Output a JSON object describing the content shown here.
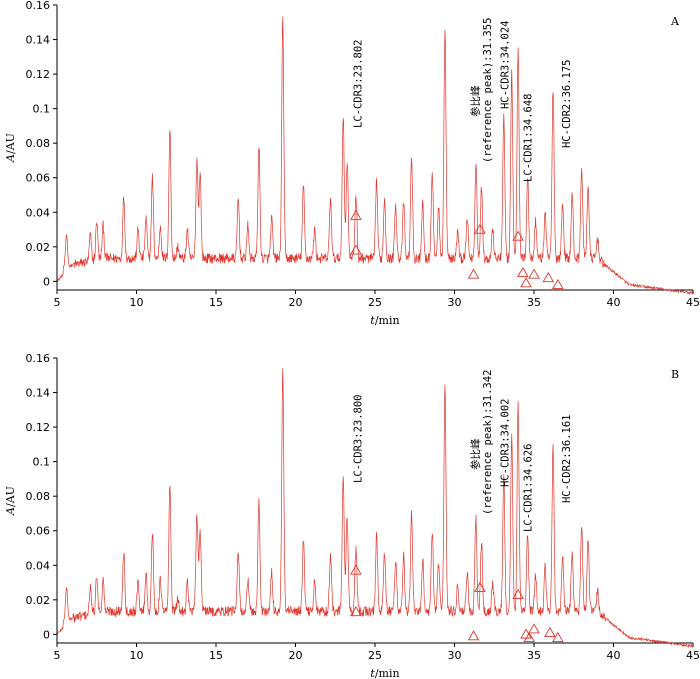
{
  "chart_data": [
    {
      "type": "line",
      "panel": "A",
      "xlabel": "t/min",
      "ylabel": "A/AU",
      "xlim": [
        5,
        45
      ],
      "ylim": [
        -0.005,
        0.16
      ],
      "x_ticks": [
        5,
        10,
        15,
        20,
        25,
        30,
        35,
        40,
        45
      ],
      "x_tick_labels": [
        "5",
        "10",
        "15",
        "20",
        "25",
        "30",
        "35",
        "40",
        "45"
      ],
      "y_ticks": [
        0,
        0.02,
        0.04,
        0.06,
        0.08,
        0.1,
        0.12,
        0.14,
        0.16
      ],
      "y_tick_labels": [
        "0",
        "0.02",
        "0.04",
        "0.06",
        "0.08",
        "0.1",
        "0.12",
        "0.14",
        "0.16"
      ],
      "peaks": [
        {
          "t": 5.6,
          "h": 0.032
        },
        {
          "t": 7.1,
          "h": 0.028
        },
        {
          "t": 7.5,
          "h": 0.036
        },
        {
          "t": 7.9,
          "h": 0.032
        },
        {
          "t": 9.2,
          "h": 0.049
        },
        {
          "t": 10.1,
          "h": 0.03
        },
        {
          "t": 10.6,
          "h": 0.036
        },
        {
          "t": 11.0,
          "h": 0.06
        },
        {
          "t": 11.5,
          "h": 0.032
        },
        {
          "t": 12.1,
          "h": 0.088
        },
        {
          "t": 12.6,
          "h": 0.02
        },
        {
          "t": 13.2,
          "h": 0.03
        },
        {
          "t": 13.8,
          "h": 0.07
        },
        {
          "t": 14.0,
          "h": 0.062
        },
        {
          "t": 16.4,
          "h": 0.048
        },
        {
          "t": 17.0,
          "h": 0.032
        },
        {
          "t": 17.7,
          "h": 0.078
        },
        {
          "t": 18.5,
          "h": 0.036
        },
        {
          "t": 19.2,
          "h": 0.152
        },
        {
          "t": 20.5,
          "h": 0.055
        },
        {
          "t": 21.2,
          "h": 0.03
        },
        {
          "t": 22.2,
          "h": 0.048
        },
        {
          "t": 23.0,
          "h": 0.095
        },
        {
          "t": 23.25,
          "h": 0.07
        },
        {
          "t": 23.8,
          "h": 0.05
        },
        {
          "t": 25.1,
          "h": 0.058
        },
        {
          "t": 25.6,
          "h": 0.048
        },
        {
          "t": 26.3,
          "h": 0.045
        },
        {
          "t": 26.8,
          "h": 0.046
        },
        {
          "t": 27.3,
          "h": 0.072
        },
        {
          "t": 28.0,
          "h": 0.044
        },
        {
          "t": 28.6,
          "h": 0.062
        },
        {
          "t": 29.0,
          "h": 0.042
        },
        {
          "t": 29.4,
          "h": 0.146
        },
        {
          "t": 30.2,
          "h": 0.028
        },
        {
          "t": 30.8,
          "h": 0.036
        },
        {
          "t": 31.35,
          "h": 0.068
        },
        {
          "t": 31.7,
          "h": 0.055
        },
        {
          "t": 32.4,
          "h": 0.03
        },
        {
          "t": 33.1,
          "h": 0.095
        },
        {
          "t": 33.6,
          "h": 0.12
        },
        {
          "t": 34.0,
          "h": 0.135
        },
        {
          "t": 34.6,
          "h": 0.06
        },
        {
          "t": 35.1,
          "h": 0.035
        },
        {
          "t": 35.7,
          "h": 0.04
        },
        {
          "t": 36.2,
          "h": 0.112
        },
        {
          "t": 36.8,
          "h": 0.045
        },
        {
          "t": 37.4,
          "h": 0.05
        },
        {
          "t": 38.0,
          "h": 0.065
        },
        {
          "t": 38.4,
          "h": 0.055
        },
        {
          "t": 39.0,
          "h": 0.025
        }
      ],
      "markers": [
        {
          "t": 23.8,
          "y": 0.038
        },
        {
          "t": 23.8,
          "y": 0.018
        },
        {
          "t": 31.2,
          "y": 0.004
        },
        {
          "t": 31.6,
          "y": 0.03
        },
        {
          "t": 34.0,
          "y": 0.026
        },
        {
          "t": 34.3,
          "y": 0.005
        },
        {
          "t": 34.5,
          "y": -0.001
        },
        {
          "t": 35.0,
          "y": 0.004
        },
        {
          "t": 35.9,
          "y": 0.002
        },
        {
          "t": 36.5,
          "y": -0.002
        }
      ],
      "annotations": [
        {
          "text": "LC-CDR3:23.802",
          "t": 24.15
        },
        {
          "text": "参比峰",
          "t": 31.55
        },
        {
          "text": "(reference peak):31.355",
          "t": 32.3
        },
        {
          "text": "HC-CDR3:34.024",
          "t": 33.4
        },
        {
          "text": "LC-CDR1:34.648",
          "t": 34.85
        },
        {
          "text": "HC-CDR2:36.175",
          "t": 37.25
        }
      ]
    },
    {
      "type": "line",
      "panel": "B",
      "xlabel": "t/min",
      "ylabel": "A/AU",
      "xlim": [
        5,
        45
      ],
      "ylim": [
        -0.005,
        0.16
      ],
      "x_ticks": [
        5,
        10,
        15,
        20,
        25,
        30,
        35,
        40,
        45
      ],
      "x_tick_labels": [
        "5",
        "10",
        "15",
        "20",
        "25",
        "30",
        "35",
        "40",
        "45"
      ],
      "y_ticks": [
        0,
        0.02,
        0.04,
        0.06,
        0.08,
        0.1,
        0.12,
        0.14,
        0.16
      ],
      "y_tick_labels": [
        "0",
        "0.02",
        "0.04",
        "0.06",
        "0.08",
        "0.1",
        "0.12",
        "0.14",
        "0.16"
      ],
      "peaks": [
        {
          "t": 5.6,
          "h": 0.032
        },
        {
          "t": 7.1,
          "h": 0.028
        },
        {
          "t": 7.5,
          "h": 0.035
        },
        {
          "t": 7.9,
          "h": 0.031
        },
        {
          "t": 9.2,
          "h": 0.048
        },
        {
          "t": 10.1,
          "h": 0.03
        },
        {
          "t": 10.6,
          "h": 0.035
        },
        {
          "t": 11.0,
          "h": 0.058
        },
        {
          "t": 11.5,
          "h": 0.031
        },
        {
          "t": 12.1,
          "h": 0.087
        },
        {
          "t": 12.6,
          "h": 0.02
        },
        {
          "t": 13.2,
          "h": 0.03
        },
        {
          "t": 13.8,
          "h": 0.069
        },
        {
          "t": 14.0,
          "h": 0.06
        },
        {
          "t": 16.4,
          "h": 0.047
        },
        {
          "t": 17.0,
          "h": 0.031
        },
        {
          "t": 17.7,
          "h": 0.077
        },
        {
          "t": 18.5,
          "h": 0.035
        },
        {
          "t": 19.2,
          "h": 0.152
        },
        {
          "t": 20.5,
          "h": 0.054
        },
        {
          "t": 21.2,
          "h": 0.03
        },
        {
          "t": 22.2,
          "h": 0.047
        },
        {
          "t": 23.0,
          "h": 0.092
        },
        {
          "t": 23.25,
          "h": 0.068
        },
        {
          "t": 23.8,
          "h": 0.049
        },
        {
          "t": 25.1,
          "h": 0.057
        },
        {
          "t": 25.6,
          "h": 0.047
        },
        {
          "t": 26.3,
          "h": 0.044
        },
        {
          "t": 26.8,
          "h": 0.045
        },
        {
          "t": 27.3,
          "h": 0.07
        },
        {
          "t": 28.0,
          "h": 0.043
        },
        {
          "t": 28.6,
          "h": 0.06
        },
        {
          "t": 29.0,
          "h": 0.041
        },
        {
          "t": 29.4,
          "h": 0.145
        },
        {
          "t": 30.2,
          "h": 0.028
        },
        {
          "t": 30.8,
          "h": 0.035
        },
        {
          "t": 31.34,
          "h": 0.067
        },
        {
          "t": 31.7,
          "h": 0.054
        },
        {
          "t": 32.4,
          "h": 0.03
        },
        {
          "t": 33.1,
          "h": 0.092
        },
        {
          "t": 33.6,
          "h": 0.115
        },
        {
          "t": 34.0,
          "h": 0.132
        },
        {
          "t": 34.6,
          "h": 0.058
        },
        {
          "t": 35.1,
          "h": 0.034
        },
        {
          "t": 35.7,
          "h": 0.039
        },
        {
          "t": 36.2,
          "h": 0.108
        },
        {
          "t": 36.8,
          "h": 0.044
        },
        {
          "t": 37.4,
          "h": 0.049
        },
        {
          "t": 38.0,
          "h": 0.064
        },
        {
          "t": 38.4,
          "h": 0.054
        },
        {
          "t": 39.0,
          "h": 0.025
        }
      ],
      "markers": [
        {
          "t": 23.8,
          "y": 0.037
        },
        {
          "t": 23.8,
          "y": 0.013
        },
        {
          "t": 31.2,
          "y": -0.001
        },
        {
          "t": 31.6,
          "y": 0.027
        },
        {
          "t": 34.0,
          "y": 0.023
        },
        {
          "t": 34.5,
          "y": 0.0
        },
        {
          "t": 34.7,
          "y": -0.002
        },
        {
          "t": 35.0,
          "y": 0.003
        },
        {
          "t": 36.0,
          "y": 0.001
        },
        {
          "t": 36.5,
          "y": -0.002
        }
      ],
      "annotations": [
        {
          "text": "LC-CDR3:23.800",
          "t": 24.15
        },
        {
          "text": "参比峰",
          "t": 31.55
        },
        {
          "text": "(reference peak):31.342",
          "t": 32.3
        },
        {
          "text": "HC-CDR3:34.002",
          "t": 33.4
        },
        {
          "text": "LC-CDR1:34.626",
          "t": 34.85
        },
        {
          "text": "HC-CDR2:36.161",
          "t": 37.25
        }
      ]
    }
  ]
}
